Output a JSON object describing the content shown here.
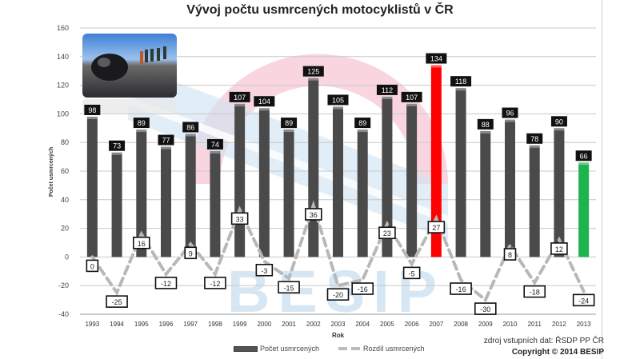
{
  "chart_data": {
    "type": "bar",
    "title": "Vývoj počtu usmrcených motocyklistů v ČR",
    "xlabel": "Rok",
    "ylabel": "Počet usmrcených",
    "ylim": [
      -40,
      160
    ],
    "yticks": [
      -40,
      -20,
      0,
      20,
      40,
      60,
      80,
      100,
      120,
      140,
      160
    ],
    "grid": true,
    "legend_position": "bottom",
    "categories": [
      "1993",
      "1994",
      "1995",
      "1996",
      "1997",
      "1998",
      "1999",
      "2000",
      "2001",
      "2002",
      "2003",
      "2004",
      "2005",
      "2006",
      "2007",
      "2008",
      "2009",
      "2010",
      "2011",
      "2012",
      "2013"
    ],
    "series": [
      {
        "name": "Počet usmrcených",
        "type": "bar",
        "values": [
          98,
          73,
          89,
          77,
          86,
          74,
          107,
          104,
          89,
          125,
          105,
          89,
          112,
          107,
          134,
          118,
          88,
          96,
          78,
          90,
          66
        ]
      },
      {
        "name": "Rozdíl usmrcených",
        "type": "line",
        "style": "dashed",
        "values": [
          0,
          -25,
          16,
          -12,
          9,
          -12,
          33,
          -3,
          -15,
          36,
          -20,
          -16,
          23,
          -5,
          27,
          -16,
          -30,
          8,
          -18,
          12,
          -24
        ]
      }
    ],
    "highlights": [
      {
        "category": "2007",
        "color": "#ff0000"
      },
      {
        "category": "2013",
        "color": "#1db34f"
      }
    ],
    "colors": {
      "bar": "#4a4a4a",
      "bar_max": "#ff0000",
      "bar_last": "#1db34f",
      "line": "#b8b8b8",
      "value_label_bg": "#111111"
    },
    "annotations": [
      "zdroj vstupních dat: ŘSDP PP ČR",
      "Copyright © 2014 BESIP"
    ]
  },
  "footer": {
    "source": "zdroj vstupních dat: ŘSDP PP ČR",
    "copyright": "Copyright © 2014 BESIP"
  },
  "watermark": {
    "text": "BESIP"
  }
}
